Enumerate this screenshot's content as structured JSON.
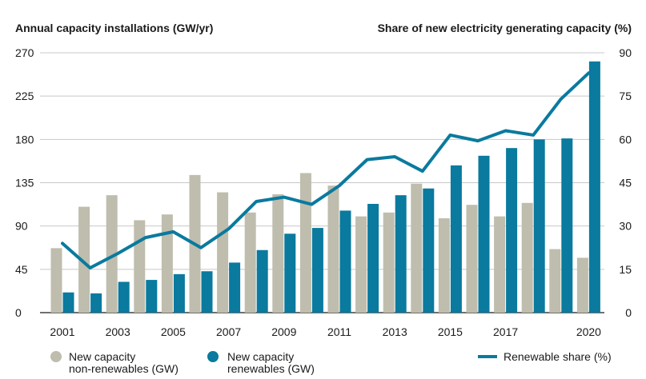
{
  "chart_data": {
    "type": "bar",
    "years": [
      2001,
      2002,
      2003,
      2004,
      2005,
      2006,
      2007,
      2008,
      2009,
      2010,
      2011,
      2012,
      2013,
      2014,
      2015,
      2016,
      2017,
      2018,
      2019,
      2020
    ],
    "x_tick_labels": [
      "2001",
      "2003",
      "2005",
      "2007",
      "2009",
      "2011",
      "2013",
      "2015",
      "2017",
      "2020"
    ],
    "x_tick_years": [
      2001,
      2003,
      2005,
      2007,
      2009,
      2011,
      2013,
      2015,
      2017,
      2020
    ],
    "series": [
      {
        "name": "New capacity non-renewables (GW)",
        "kind": "bar",
        "color": "#bfbdad",
        "values": [
          67,
          110,
          122,
          96,
          102,
          143,
          125,
          104,
          123,
          145,
          132,
          100,
          104,
          134,
          98,
          112,
          100,
          114,
          66,
          57
        ]
      },
      {
        "name": "New capacity renewables (GW)",
        "kind": "bar",
        "color": "#0a7a9e",
        "values": [
          21,
          20,
          32,
          34,
          40,
          43,
          52,
          65,
          82,
          88,
          106,
          113,
          122,
          129,
          153,
          163,
          171,
          180,
          181,
          261
        ]
      },
      {
        "name": "Renewable share (%)",
        "kind": "line",
        "color": "#0a7a9e",
        "axis": "right",
        "values": [
          24,
          15.5,
          20.5,
          26,
          28,
          22.5,
          29,
          38.5,
          40,
          37.5,
          44,
          53,
          54,
          49,
          61.5,
          59.5,
          63,
          61.5,
          74,
          83
        ]
      }
    ],
    "left_axis": {
      "title": "Annual capacity installations (GW/yr)",
      "min": 0,
      "max": 270,
      "ticks": [
        "0",
        "45",
        "90",
        "135",
        "180",
        "225",
        "270"
      ]
    },
    "right_axis": {
      "title": "Share of new electricity generating capacity (%)",
      "min": 0,
      "max": 90,
      "ticks": [
        "0",
        "15",
        "30",
        "45",
        "60",
        "75",
        "90"
      ]
    },
    "legend": {
      "nonrenew_line1": "New capacity",
      "nonrenew_line2": "non-renewables (GW)",
      "renew_line1": "New capacity",
      "renew_line2": "renewables (GW)",
      "share": "Renewable share (%)"
    }
  }
}
